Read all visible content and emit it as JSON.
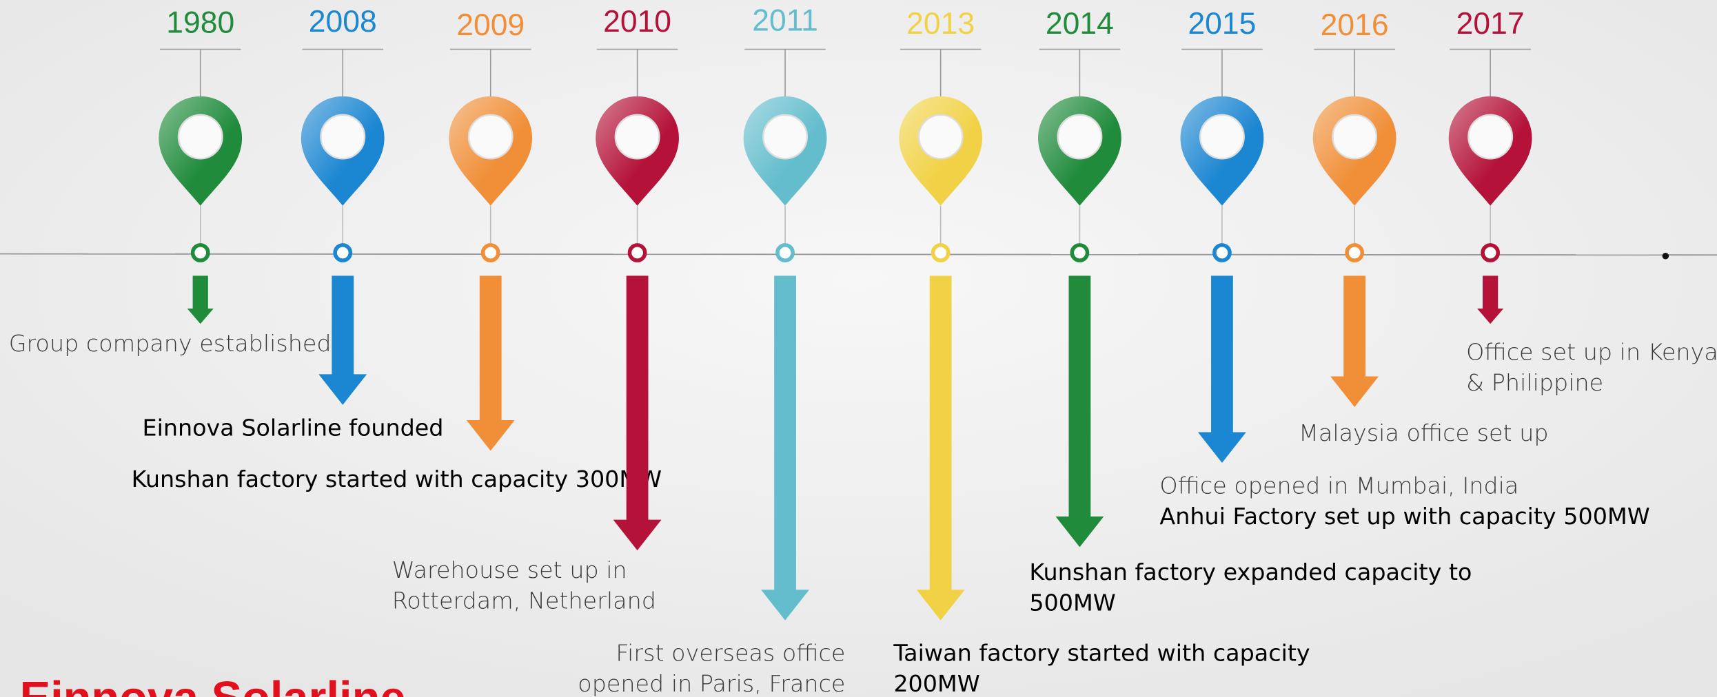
{
  "milestones": [
    {
      "year": "1980",
      "color": "#1f8b3b",
      "lines": [
        "Group company established"
      ]
    },
    {
      "year": "2008",
      "color": "#1b86d1",
      "lines": [
        "Einnova Solarline founded"
      ]
    },
    {
      "year": "2009",
      "color": "#f08f38",
      "lines": [
        "Kunshan factory started with capacity 300MW"
      ]
    },
    {
      "year": "2010",
      "color": "#b41238",
      "lines": [
        "Warehouse set up in",
        "Rotterdam, Netherland"
      ]
    },
    {
      "year": "2011",
      "color": "#63bdcd",
      "lines": [
        "First overseas office",
        "opened in Paris, France"
      ]
    },
    {
      "year": "2013",
      "color": "#f1d246",
      "lines": [
        "Taiwan factory started with capacity",
        "200MW"
      ]
    },
    {
      "year": "2014",
      "color": "#1f8b3b",
      "lines": [
        "Kunshan factory expanded capacity to",
        "500MW"
      ]
    },
    {
      "year": "2015",
      "color": "#1b86d1",
      "lines": [
        "Office opened in Mumbai, India",
        "Anhui Factory set up with capacity 500MW"
      ]
    },
    {
      "year": "2016",
      "color": "#f08f38",
      "lines": [
        "Malaysia office set up"
      ]
    },
    {
      "year": "2017",
      "color": "#b41238",
      "lines": [
        "Office set up in Kenya",
        "& Philippine"
      ]
    }
  ],
  "logo": "Einnova Solarline"
}
